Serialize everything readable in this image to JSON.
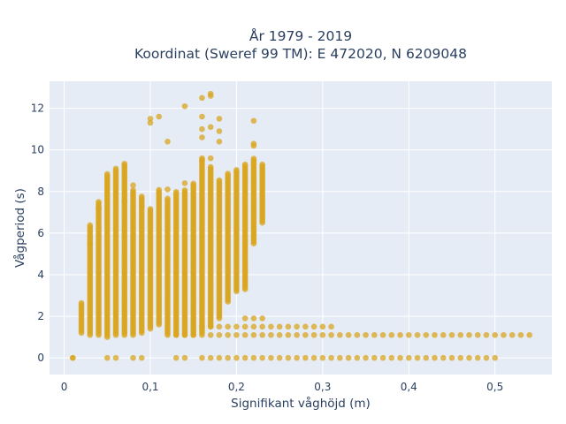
{
  "chart_data": {
    "type": "scatter",
    "title_line1": "År 1979 - 2019",
    "title_line2": "Koordinat (Sweref 99 TM): E 472020, N 6209048",
    "xlabel": "Signifikant våghöjd (m)",
    "ylabel": "Vågperiod (s)",
    "xlim": [
      -0.017,
      0.566
    ],
    "ylim": [
      -0.8,
      13.3
    ],
    "xticks": [
      0,
      0.1,
      0.2,
      0.3,
      0.4,
      0.5
    ],
    "xtick_labels": [
      "0",
      "0,1",
      "0,2",
      "0,3",
      "0,4",
      "0,5"
    ],
    "yticks": [
      0,
      2,
      4,
      6,
      8,
      10,
      12
    ],
    "ytick_labels": [
      "0",
      "2",
      "4",
      "6",
      "8",
      "10",
      "12"
    ],
    "grid": true,
    "colors": {
      "marker": "#DAA520",
      "plot_bg": "#E5ECF6",
      "grid": "#ffffff",
      "text": "#2a3f5f"
    },
    "series": [
      {
        "columns": [
          {
            "x": 0.01,
            "y_min": 0,
            "y_max": 0
          },
          {
            "x": 0.02,
            "y_min": 1.2,
            "y_max": 2.7
          },
          {
            "x": 0.03,
            "y_min": 1.1,
            "y_max": 6.4
          },
          {
            "x": 0.04,
            "y_min": 1.1,
            "y_max": 7.5
          },
          {
            "x": 0.05,
            "y_min": 1.0,
            "y_max": 8.9
          },
          {
            "x": 0.06,
            "y_min": 1.1,
            "y_max": 9.1
          },
          {
            "x": 0.07,
            "y_min": 1.1,
            "y_max": 9.4
          },
          {
            "x": 0.08,
            "y_min": 1.1,
            "y_max": 8.1
          },
          {
            "x": 0.09,
            "y_min": 1.2,
            "y_max": 7.8
          },
          {
            "x": 0.1,
            "y_min": 1.4,
            "y_max": 7.2
          },
          {
            "x": 0.11,
            "y_min": 1.6,
            "y_max": 8.1
          },
          {
            "x": 0.12,
            "y_min": 1.1,
            "y_max": 7.7
          },
          {
            "x": 0.13,
            "y_min": 1.1,
            "y_max": 8.0
          },
          {
            "x": 0.14,
            "y_min": 1.1,
            "y_max": 8.1
          },
          {
            "x": 0.15,
            "y_min": 1.1,
            "y_max": 8.4
          },
          {
            "x": 0.16,
            "y_min": 1.2,
            "y_max": 9.6
          },
          {
            "x": 0.17,
            "y_min": 1.5,
            "y_max": 9.2
          },
          {
            "x": 0.18,
            "y_min": 1.9,
            "y_max": 8.6
          },
          {
            "x": 0.19,
            "y_min": 2.7,
            "y_max": 8.9
          },
          {
            "x": 0.2,
            "y_min": 3.2,
            "y_max": 9.1
          },
          {
            "x": 0.21,
            "y_min": 3.3,
            "y_max": 9.3
          },
          {
            "x": 0.22,
            "y_min": 5.5,
            "y_max": 9.6
          },
          {
            "x": 0.23,
            "y_min": 6.5,
            "y_max": 9.3
          }
        ],
        "points": [
          [
            0.01,
            0
          ],
          [
            0.05,
            0
          ],
          [
            0.06,
            0
          ],
          [
            0.08,
            0
          ],
          [
            0.09,
            0
          ],
          [
            0.13,
            0
          ],
          [
            0.14,
            0
          ],
          [
            0.16,
            0
          ],
          [
            0.17,
            0
          ],
          [
            0.18,
            0
          ],
          [
            0.19,
            0
          ],
          [
            0.2,
            0
          ],
          [
            0.21,
            0
          ],
          [
            0.22,
            0
          ],
          [
            0.23,
            0
          ],
          [
            0.24,
            0
          ],
          [
            0.25,
            0
          ],
          [
            0.26,
            0
          ],
          [
            0.27,
            0
          ],
          [
            0.28,
            0
          ],
          [
            0.29,
            0
          ],
          [
            0.3,
            0
          ],
          [
            0.31,
            0
          ],
          [
            0.32,
            0
          ],
          [
            0.33,
            0
          ],
          [
            0.34,
            0
          ],
          [
            0.35,
            0
          ],
          [
            0.36,
            0
          ],
          [
            0.37,
            0
          ],
          [
            0.38,
            0
          ],
          [
            0.39,
            0
          ],
          [
            0.4,
            0
          ],
          [
            0.41,
            0
          ],
          [
            0.42,
            0
          ],
          [
            0.43,
            0
          ],
          [
            0.44,
            0
          ],
          [
            0.45,
            0
          ],
          [
            0.46,
            0
          ],
          [
            0.47,
            0
          ],
          [
            0.48,
            0
          ],
          [
            0.49,
            0
          ],
          [
            0.5,
            0
          ],
          [
            0.13,
            1.1
          ],
          [
            0.14,
            1.1
          ],
          [
            0.15,
            1.1
          ],
          [
            0.16,
            1.1
          ],
          [
            0.17,
            1.1
          ],
          [
            0.18,
            1.1
          ],
          [
            0.19,
            1.1
          ],
          [
            0.2,
            1.1
          ],
          [
            0.21,
            1.1
          ],
          [
            0.22,
            1.1
          ],
          [
            0.23,
            1.1
          ],
          [
            0.24,
            1.1
          ],
          [
            0.25,
            1.1
          ],
          [
            0.26,
            1.1
          ],
          [
            0.27,
            1.1
          ],
          [
            0.28,
            1.1
          ],
          [
            0.29,
            1.1
          ],
          [
            0.3,
            1.1
          ],
          [
            0.31,
            1.1
          ],
          [
            0.32,
            1.1
          ],
          [
            0.33,
            1.1
          ],
          [
            0.34,
            1.1
          ],
          [
            0.35,
            1.1
          ],
          [
            0.36,
            1.1
          ],
          [
            0.37,
            1.1
          ],
          [
            0.38,
            1.1
          ],
          [
            0.39,
            1.1
          ],
          [
            0.4,
            1.1
          ],
          [
            0.41,
            1.1
          ],
          [
            0.42,
            1.1
          ],
          [
            0.43,
            1.1
          ],
          [
            0.44,
            1.1
          ],
          [
            0.45,
            1.1
          ],
          [
            0.46,
            1.1
          ],
          [
            0.47,
            1.1
          ],
          [
            0.48,
            1.1
          ],
          [
            0.49,
            1.1
          ],
          [
            0.5,
            1.1
          ],
          [
            0.51,
            1.1
          ],
          [
            0.52,
            1.1
          ],
          [
            0.53,
            1.1
          ],
          [
            0.54,
            1.1
          ],
          [
            0.16,
            1.5
          ],
          [
            0.17,
            1.5
          ],
          [
            0.18,
            1.5
          ],
          [
            0.19,
            1.5
          ],
          [
            0.2,
            1.5
          ],
          [
            0.21,
            1.5
          ],
          [
            0.22,
            1.5
          ],
          [
            0.23,
            1.5
          ],
          [
            0.24,
            1.5
          ],
          [
            0.25,
            1.5
          ],
          [
            0.26,
            1.5
          ],
          [
            0.27,
            1.5
          ],
          [
            0.28,
            1.5
          ],
          [
            0.29,
            1.5
          ],
          [
            0.3,
            1.5
          ],
          [
            0.31,
            1.5
          ],
          [
            0.21,
            1.9
          ],
          [
            0.22,
            1.9
          ],
          [
            0.23,
            1.9
          ],
          [
            0.03,
            5.5
          ],
          [
            0.04,
            7.2
          ],
          [
            0.07,
            7.5
          ],
          [
            0.08,
            8.3
          ],
          [
            0.09,
            7.3
          ],
          [
            0.1,
            11.3
          ],
          [
            0.1,
            11.5
          ],
          [
            0.11,
            11.6
          ],
          [
            0.12,
            10.4
          ],
          [
            0.14,
            12.1
          ],
          [
            0.16,
            12.5
          ],
          [
            0.16,
            11.6
          ],
          [
            0.16,
            11.0
          ],
          [
            0.16,
            10.6
          ],
          [
            0.17,
            12.7
          ],
          [
            0.17,
            12.6
          ],
          [
            0.17,
            11.1
          ],
          [
            0.18,
            10.9
          ],
          [
            0.18,
            10.4
          ],
          [
            0.18,
            11.5
          ],
          [
            0.22,
            11.4
          ],
          [
            0.22,
            10.3
          ],
          [
            0.22,
            10.2
          ],
          [
            0.16,
            9.5
          ],
          [
            0.17,
            9.6
          ],
          [
            0.14,
            8.4
          ],
          [
            0.12,
            8.1
          ]
        ]
      }
    ]
  }
}
